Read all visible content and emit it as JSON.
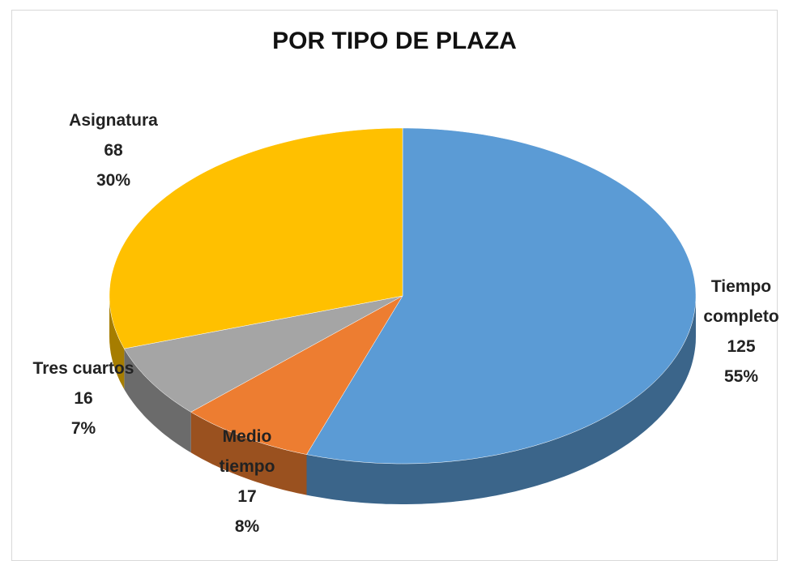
{
  "chart_data": {
    "type": "pie3d",
    "title": "POR TIPO DE PLAZA",
    "categories": [
      "Tiempo completo",
      "Medio tiempo",
      "Tres cuartos",
      "Asignatura"
    ],
    "values": [
      125,
      17,
      16,
      68
    ],
    "percent_labels": [
      "55%",
      "8%",
      "7%",
      "30%"
    ],
    "colors": [
      "#5b9bd5",
      "#ed7d31",
      "#a5a5a5",
      "#ffc000"
    ]
  }
}
